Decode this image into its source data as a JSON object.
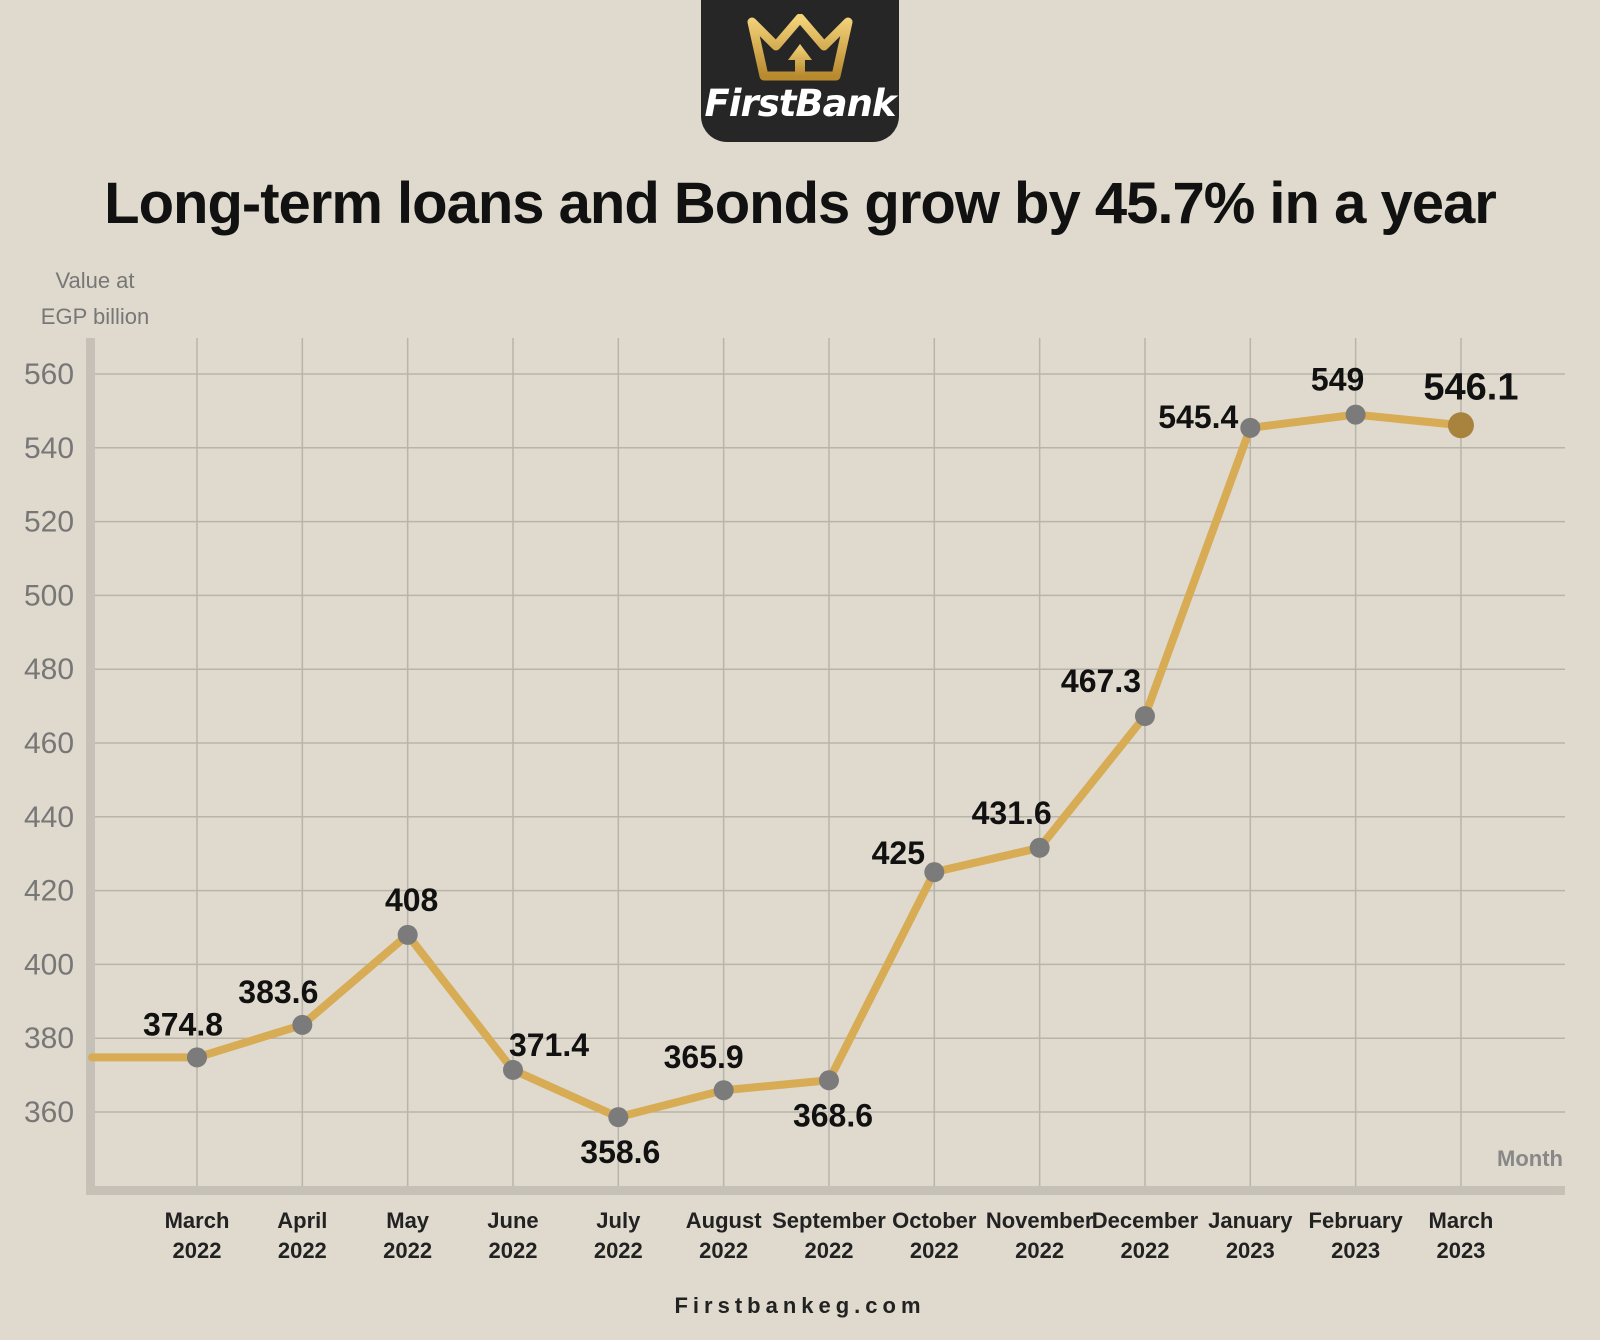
{
  "brand": {
    "name": "FirstBank",
    "logo_icon": "crown-icon",
    "website": "Firstbankeg.com"
  },
  "colors": {
    "background": "#dfdacd",
    "line": "#d8ab55",
    "point": "#7b7b7b",
    "last_point": "#a8833e",
    "grid": "#b9b4aa",
    "axis": "#c6c1b7"
  },
  "chart_data": {
    "type": "line",
    "title": "Long-term loans and Bonds grow by 45.7% in a year",
    "ylabel": [
      "Value at",
      "EGP billion"
    ],
    "xlabel": "Month",
    "ylim": [
      340,
      565
    ],
    "yticks": [
      360,
      380,
      400,
      420,
      440,
      460,
      480,
      500,
      520,
      540,
      560
    ],
    "grid": true,
    "categories": [
      [
        "March",
        "2022"
      ],
      [
        "April",
        "2022"
      ],
      [
        "May",
        "2022"
      ],
      [
        "June",
        "2022"
      ],
      [
        "July",
        "2022"
      ],
      [
        "August",
        "2022"
      ],
      [
        "September",
        "2022"
      ],
      [
        "October",
        "2022"
      ],
      [
        "November",
        "2022"
      ],
      [
        "December",
        "2022"
      ],
      [
        "January",
        "2023"
      ],
      [
        "February",
        "2023"
      ],
      [
        "March",
        "2023"
      ]
    ],
    "values": [
      374.8,
      383.6,
      408,
      371.4,
      358.6,
      365.9,
      368.6,
      425,
      431.6,
      467.3,
      545.4,
      549,
      546.1
    ],
    "data_labels": [
      "374.8",
      "383.6",
      "408",
      "371.4",
      "358.6",
      "365.9",
      "368.6",
      "425",
      "431.6",
      "467.3",
      "545.4",
      "549",
      "546.1"
    ]
  }
}
